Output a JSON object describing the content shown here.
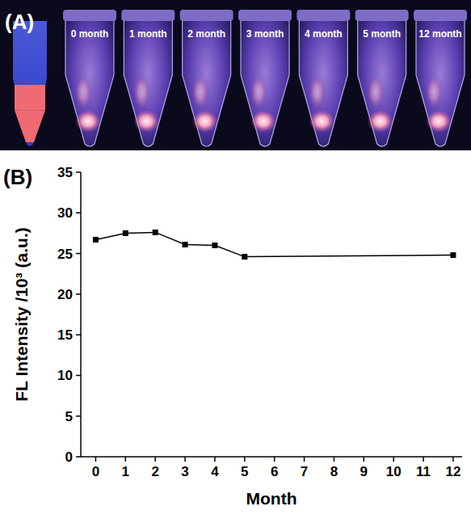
{
  "photo": {
    "letter": "(A)",
    "labels": [
      "0 month",
      "1 month",
      "2 month",
      "3 month",
      "4 month",
      "5 month",
      "12 month"
    ]
  },
  "chart_data": {
    "type": "line",
    "panel_letter": "(B)",
    "x_label": "Month",
    "y_label": "FL Intensity /10³ (a.u.)",
    "x": [
      0,
      1,
      2,
      3,
      4,
      5,
      12
    ],
    "values": [
      26.7,
      27.5,
      27.6,
      26.1,
      26.0,
      24.6,
      24.8
    ],
    "color": "#000000",
    "marker": "square",
    "xlim": [
      -0.5,
      12.3
    ],
    "xticks": [
      0,
      1,
      2,
      3,
      4,
      5,
      6,
      7,
      8,
      9,
      10,
      11,
      12
    ],
    "ylim": [
      0,
      35
    ],
    "yticks": [
      0,
      5,
      10,
      15,
      20,
      25,
      30,
      35
    ],
    "grid": false
  }
}
